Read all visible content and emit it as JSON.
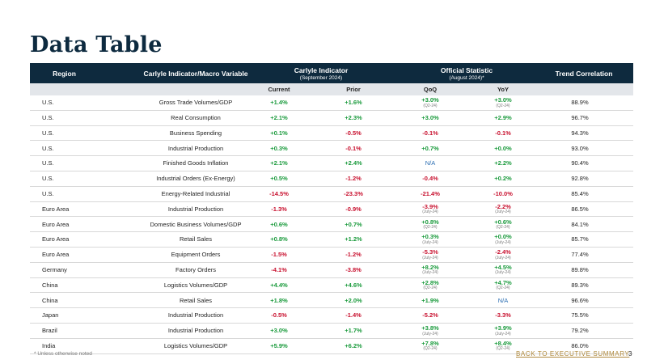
{
  "title": "Data Table",
  "header": {
    "region": "Region",
    "indicator": "Carlyle Indicator/Macro Variable",
    "carlyle": "Carlyle Indicator",
    "carlyle_sub": "(September 2024)",
    "official": "Official Statistic",
    "official_sub": "(August 2024)*",
    "trend": "Trend Correlation"
  },
  "subheader": {
    "current": "Current",
    "prior": "Prior",
    "qoq": "QoQ",
    "yoy": "YoY"
  },
  "rows": [
    {
      "region": "U.S.",
      "indicator": "Gross Trade Volumes/GDP",
      "current": "+1.4%",
      "prior": "+1.6%",
      "qoq": "+3.0%",
      "qoq_period": "(Q2-24)",
      "yoy": "+3.0%",
      "yoy_period": "(Q2-24)",
      "trend": "88.9%"
    },
    {
      "region": "U.S.",
      "indicator": "Real Consumption",
      "current": "+2.1%",
      "prior": "+2.3%",
      "qoq": "+3.0%",
      "qoq_period": "",
      "yoy": "+2.9%",
      "yoy_period": "",
      "trend": "96.7%"
    },
    {
      "region": "U.S.",
      "indicator": "Business Spending",
      "current": "+0.1%",
      "prior": "-0.5%",
      "qoq": "-0.1%",
      "qoq_period": "",
      "yoy": "-0.1%",
      "yoy_period": "",
      "trend": "94.3%"
    },
    {
      "region": "U.S.",
      "indicator": "Industrial Production",
      "current": "+0.3%",
      "prior": "-0.1%",
      "qoq": "+0.7%",
      "qoq_period": "",
      "yoy": "+0.0%",
      "yoy_period": "",
      "trend": "93.0%"
    },
    {
      "region": "U.S.",
      "indicator": "Finished Goods Inflation",
      "current": "+2.1%",
      "prior": "+2.4%",
      "qoq": "N/A",
      "qoq_period": "",
      "yoy": "+2.2%",
      "yoy_period": "",
      "trend": "90.4%"
    },
    {
      "region": "U.S.",
      "indicator": "Industrial Orders (Ex-Energy)",
      "current": "+0.5%",
      "prior": "-1.2%",
      "qoq": "-0.4%",
      "qoq_period": "",
      "yoy": "+0.2%",
      "yoy_period": "",
      "trend": "92.8%"
    },
    {
      "region": "U.S.",
      "indicator": "Energy-Related Industrial",
      "current": "-14.5%",
      "prior": "-23.3%",
      "qoq": "-21.4%",
      "qoq_period": "",
      "yoy": "-10.0%",
      "yoy_period": "",
      "trend": "85.4%"
    },
    {
      "region": "Euro Area",
      "indicator": "Industrial Production",
      "current": "-1.3%",
      "prior": "-0.9%",
      "qoq": "-3.9%",
      "qoq_period": "(July-24)",
      "yoy": "-2.2%",
      "yoy_period": "(July-24)",
      "trend": "86.5%"
    },
    {
      "region": "Euro Area",
      "indicator": "Domestic Business Volumes/GDP",
      "current": "+0.6%",
      "prior": "+0.7%",
      "qoq": "+0.8%",
      "qoq_period": "(Q2-24)",
      "yoy": "+0.6%",
      "yoy_period": "(Q2-24)",
      "trend": "84.1%"
    },
    {
      "region": "Euro Area",
      "indicator": "Retail Sales",
      "current": "+0.8%",
      "prior": "+1.2%",
      "qoq": "+0.3%",
      "qoq_period": "(July-24)",
      "yoy": "+0.0%",
      "yoy_period": "(July-24)",
      "trend": "85.7%"
    },
    {
      "region": "Euro Area",
      "indicator": "Equipment Orders",
      "current": "-1.5%",
      "prior": "-1.2%",
      "qoq": "-5.3%",
      "qoq_period": "(July-24)",
      "yoy": "-2.4%",
      "yoy_period": "(July-24)",
      "trend": "77.4%"
    },
    {
      "region": "Germany",
      "indicator": "Factory Orders",
      "current": "-4.1%",
      "prior": "-3.8%",
      "qoq": "+8.2%",
      "qoq_period": "(July-24)",
      "yoy": "+4.5%",
      "yoy_period": "(July-24)",
      "trend": "89.8%"
    },
    {
      "region": "China",
      "indicator": "Logistics Volumes/GDP",
      "current": "+4.4%",
      "prior": "+4.6%",
      "qoq": "+2.8%",
      "qoq_period": "(Q2-24)",
      "yoy": "+4.7%",
      "yoy_period": "(Q2-24)",
      "trend": "89.3%"
    },
    {
      "region": "China",
      "indicator": "Retail Sales",
      "current": "+1.8%",
      "prior": "+2.0%",
      "qoq": "+1.9%",
      "qoq_period": "",
      "yoy": "N/A",
      "yoy_period": "",
      "trend": "96.6%"
    },
    {
      "region": "Japan",
      "indicator": "Industrial Production",
      "current": "-0.5%",
      "prior": "-1.4%",
      "qoq": "-5.2%",
      "qoq_period": "",
      "yoy": "-3.3%",
      "yoy_period": "",
      "trend": "75.5%"
    },
    {
      "region": "Brazil",
      "indicator": "Industrial Production",
      "current": "+3.0%",
      "prior": "+1.7%",
      "qoq": "+3.8%",
      "qoq_period": "(July-24)",
      "yoy": "+3.9%",
      "yoy_period": "(July-24)",
      "trend": "79.2%"
    },
    {
      "region": "India",
      "indicator": "Logistics Volumes/GDP",
      "current": "+5.9%",
      "prior": "+6.2%",
      "qoq": "+7.8%",
      "qoq_period": "(Q2-24)",
      "yoy": "+8.4%",
      "yoy_period": "(Q2-24)",
      "trend": "86.0%"
    }
  ],
  "footnote": "* Unless otherwise noted",
  "back_link": "BACK TO EXECUTIVE SUMMARY",
  "page_number": "3",
  "colors": {
    "header_bg": "#0e2a3e",
    "positive": "#1a9a3c",
    "negative": "#c8102e",
    "na": "#2a6db2",
    "link": "#b08a3e"
  }
}
